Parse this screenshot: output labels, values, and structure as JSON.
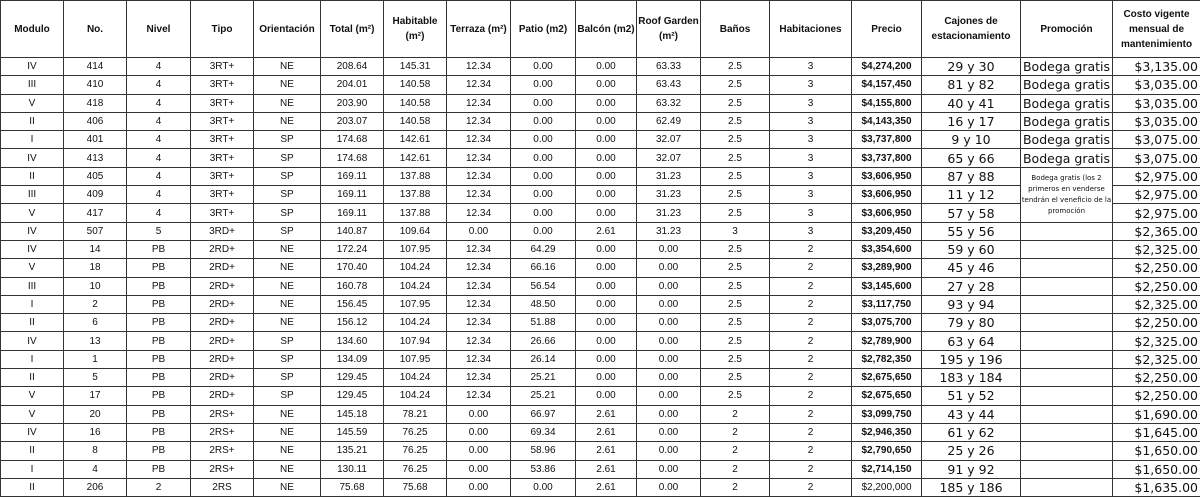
{
  "headers": {
    "modulo": "Modulo",
    "no": "No.",
    "nivel": "Nivel",
    "tipo": "Tipo",
    "orientacion": "Orientación",
    "total": "Total (m²)",
    "habitable": "Habitable (m²)",
    "terraza": "Terraza (m²)",
    "patio": "Patio (m2)",
    "balcon": "Balcón (m2)",
    "roof": "Roof Garden (m²)",
    "banos": "Baños",
    "habitaciones": "Habitaciones",
    "precio": "Precio",
    "cajones": "Cajones de estacionamiento",
    "promocion": "Promoción",
    "costo": "Costo vigente mensual de mantenimiento"
  },
  "promo_note": "Bodega gratis (los 2 primeros en venderse tendrán el veneficio de la promoción",
  "rows": [
    [
      "IV",
      "414",
      "4",
      "3RT+",
      "NE",
      "208.64",
      "145.31",
      "12.34",
      "0.00",
      "0.00",
      "63.33",
      "2.5",
      "3",
      "$4,274,200",
      "29 y 30",
      "Bodega gratis",
      "$3,135.00"
    ],
    [
      "III",
      "410",
      "4",
      "3RT+",
      "NE",
      "204.01",
      "140.58",
      "12.34",
      "0.00",
      "0.00",
      "63.43",
      "2.5",
      "3",
      "$4,157,450",
      "81 y 82",
      "Bodega gratis",
      "$3,035.00"
    ],
    [
      "V",
      "418",
      "4",
      "3RT+",
      "NE",
      "203.90",
      "140.58",
      "12.34",
      "0.00",
      "0.00",
      "63.32",
      "2.5",
      "3",
      "$4,155,800",
      "40 y 41",
      "Bodega gratis",
      "$3,035.00"
    ],
    [
      "II",
      "406",
      "4",
      "3RT+",
      "NE",
      "203.07",
      "140.58",
      "12.34",
      "0.00",
      "0.00",
      "62.49",
      "2.5",
      "3",
      "$4,143,350",
      "16 y 17",
      "Bodega gratis",
      "$3,035.00"
    ],
    [
      "I",
      "401",
      "4",
      "3RT+",
      "SP",
      "174.68",
      "142.61",
      "12.34",
      "0.00",
      "0.00",
      "32.07",
      "2.5",
      "3",
      "$3,737,800",
      "9 y 10",
      "Bodega gratis",
      "$3,075.00"
    ],
    [
      "IV",
      "413",
      "4",
      "3RT+",
      "SP",
      "174.68",
      "142.61",
      "12.34",
      "0.00",
      "0.00",
      "32.07",
      "2.5",
      "3",
      "$3,737,800",
      "65 y 66",
      "Bodega gratis",
      "$3,075.00"
    ],
    [
      "II",
      "405",
      "4",
      "3RT+",
      "SP",
      "169.11",
      "137.88",
      "12.34",
      "0.00",
      "0.00",
      "31.23",
      "2.5",
      "3",
      "$3,606,950",
      "87 y 88",
      "",
      "$2,975.00"
    ],
    [
      "III",
      "409",
      "4",
      "3RT+",
      "SP",
      "169.11",
      "137.88",
      "12.34",
      "0.00",
      "0.00",
      "31.23",
      "2.5",
      "3",
      "$3,606,950",
      "11 y 12",
      "",
      "$2,975.00"
    ],
    [
      "V",
      "417",
      "4",
      "3RT+",
      "SP",
      "169.11",
      "137.88",
      "12.34",
      "0.00",
      "0.00",
      "31.23",
      "2.5",
      "3",
      "$3,606,950",
      "57 y 58",
      "",
      "$2,975.00"
    ],
    [
      "IV",
      "507",
      "5",
      "3RD+",
      "SP",
      "140.87",
      "109.64",
      "0.00",
      "0.00",
      "2.61",
      "31.23",
      "3",
      "3",
      "$3,209,450",
      "55 y 56",
      "",
      "$2,365.00"
    ],
    [
      "IV",
      "14",
      "PB",
      "2RD+",
      "NE",
      "172.24",
      "107.95",
      "12.34",
      "64.29",
      "0.00",
      "0.00",
      "2.5",
      "2",
      "$3,354,600",
      "59 y 60",
      "",
      "$2,325.00"
    ],
    [
      "V",
      "18",
      "PB",
      "2RD+",
      "NE",
      "170.40",
      "104.24",
      "12.34",
      "66.16",
      "0.00",
      "0.00",
      "2.5",
      "2",
      "$3,289,900",
      "45 y 46",
      "",
      "$2,250.00"
    ],
    [
      "III",
      "10",
      "PB",
      "2RD+",
      "NE",
      "160.78",
      "104.24",
      "12.34",
      "56.54",
      "0.00",
      "0.00",
      "2.5",
      "2",
      "$3,145,600",
      "27 y 28",
      "",
      "$2,250.00"
    ],
    [
      "I",
      "2",
      "PB",
      "2RD+",
      "NE",
      "156.45",
      "107.95",
      "12.34",
      "48.50",
      "0.00",
      "0.00",
      "2.5",
      "2",
      "$3,117,750",
      "93 y 94",
      "",
      "$2,325.00"
    ],
    [
      "II",
      "6",
      "PB",
      "2RD+",
      "NE",
      "156.12",
      "104.24",
      "12.34",
      "51.88",
      "0.00",
      "0.00",
      "2.5",
      "2",
      "$3,075,700",
      "79 y 80",
      "",
      "$2,250.00"
    ],
    [
      "IV",
      "13",
      "PB",
      "2RD+",
      "SP",
      "134.60",
      "107.94",
      "12.34",
      "26.66",
      "0.00",
      "0.00",
      "2.5",
      "2",
      "$2,789,900",
      "63 y 64",
      "",
      "$2,325.00"
    ],
    [
      "I",
      "1",
      "PB",
      "2RD+",
      "SP",
      "134.09",
      "107.95",
      "12.34",
      "26.14",
      "0.00",
      "0.00",
      "2.5",
      "2",
      "$2,782,350",
      "195 y 196",
      "",
      "$2,325.00"
    ],
    [
      "II",
      "5",
      "PB",
      "2RD+",
      "SP",
      "129.45",
      "104.24",
      "12.34",
      "25.21",
      "0.00",
      "0.00",
      "2.5",
      "2",
      "$2,675,650",
      "183 y 184",
      "",
      "$2,250.00"
    ],
    [
      "V",
      "17",
      "PB",
      "2RD+",
      "SP",
      "129.45",
      "104.24",
      "12.34",
      "25.21",
      "0.00",
      "0.00",
      "2.5",
      "2",
      "$2,675,650",
      "51 y 52",
      "",
      "$2,250.00"
    ],
    [
      "V",
      "20",
      "PB",
      "2RS+",
      "NE",
      "145.18",
      "78.21",
      "0.00",
      "66.97",
      "2.61",
      "0.00",
      "2",
      "2",
      "$3,099,750",
      "43 y 44",
      "",
      "$1,690.00"
    ],
    [
      "IV",
      "16",
      "PB",
      "2RS+",
      "NE",
      "145.59",
      "76.25",
      "0.00",
      "69.34",
      "2.61",
      "0.00",
      "2",
      "2",
      "$2,946,350",
      "61 y 62",
      "",
      "$1,645.00"
    ],
    [
      "II",
      "8",
      "PB",
      "2RS+",
      "NE",
      "135.21",
      "76.25",
      "0.00",
      "58.96",
      "2.61",
      "0.00",
      "2",
      "2",
      "$2,790,650",
      "25 y 26",
      "",
      "$1,650.00"
    ],
    [
      "I",
      "4",
      "PB",
      "2RS+",
      "NE",
      "130.11",
      "76.25",
      "0.00",
      "53.86",
      "2.61",
      "0.00",
      "2",
      "2",
      "$2,714,150",
      "91 y 92",
      "",
      "$1,650.00"
    ],
    [
      "II",
      "206",
      "2",
      "2RS",
      "NE",
      "75.68",
      "75.68",
      "0.00",
      "0.00",
      "2.61",
      "0.00",
      "2",
      "2",
      "$2,200,000",
      "185 y 186",
      "",
      "$1,635.00"
    ]
  ]
}
